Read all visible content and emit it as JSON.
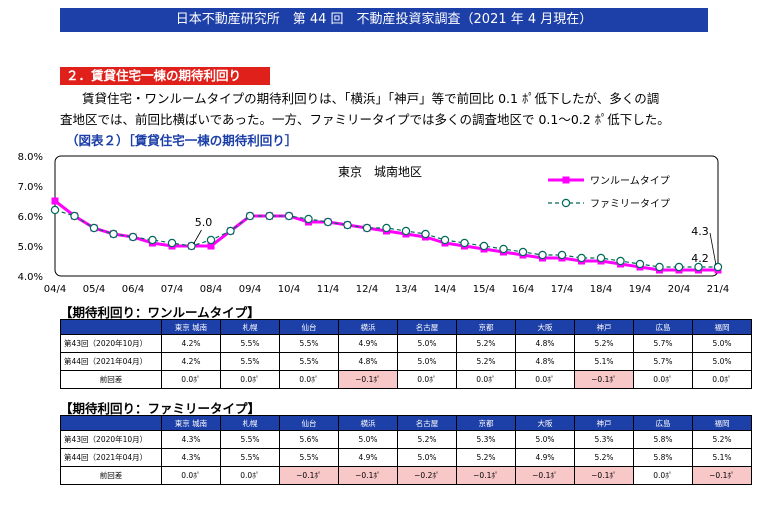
{
  "header": {
    "banner": "日本不動産研究所　第 44 回　不動産投資家調査（2021 年 4 月現在）"
  },
  "section": {
    "title": "２．賃貸住宅一棟の期待利回り",
    "para_line1": "賃貸住宅・ワンルームタイプの期待利回りは、「横浜」「神戸」等で前回比 0.1 ﾎﾟ低下したが、多くの調",
    "para_line2": "査地区では、前回比横ばいであった。一方、ファミリータイプでは多くの調査地区で 0.1〜0.2 ﾎﾟ低下した。",
    "figure_title": "（図表２）［賃貸住宅一棟の期待利回り］"
  },
  "chart_data": {
    "type": "line",
    "title": "東京　城南地区",
    "x": [
      "04/4",
      "04/10",
      "05/4",
      "05/10",
      "06/4",
      "06/10",
      "07/4",
      "07/10",
      "08/4",
      "08/10",
      "09/4",
      "09/10",
      "10/4",
      "10/10",
      "11/4",
      "11/10",
      "12/4",
      "12/10",
      "13/4",
      "13/10",
      "14/4",
      "14/10",
      "15/4",
      "15/10",
      "16/4",
      "16/10",
      "17/4",
      "17/10",
      "18/4",
      "18/10",
      "19/4",
      "19/10",
      "20/4",
      "20/10",
      "21/4"
    ],
    "x_tick_labels": [
      "04/4",
      "05/4",
      "06/4",
      "07/4",
      "08/4",
      "09/4",
      "10/4",
      "11/4",
      "12/4",
      "13/4",
      "14/4",
      "15/4",
      "16/4",
      "17/4",
      "18/4",
      "19/4",
      "20/4",
      "21/4"
    ],
    "ylim": [
      4.0,
      8.0
    ],
    "y_tick_labels": [
      "4.0%",
      "5.0%",
      "6.0%",
      "7.0%",
      "8.0%"
    ],
    "legend_position": "top-right",
    "series": [
      {
        "name": "ワンルームタイプ",
        "color": "#ff00ff",
        "values": [
          6.5,
          6.0,
          5.6,
          5.4,
          5.3,
          5.1,
          5.0,
          5.0,
          5.0,
          5.5,
          6.0,
          6.0,
          6.0,
          5.8,
          5.8,
          5.7,
          5.6,
          5.5,
          5.4,
          5.3,
          5.1,
          5.0,
          4.9,
          4.8,
          4.7,
          4.6,
          4.6,
          4.5,
          4.5,
          4.4,
          4.3,
          4.2,
          4.2,
          4.2,
          4.2
        ]
      },
      {
        "name": "ファミリータイプ",
        "color": "#006a5a",
        "values": [
          6.2,
          6.0,
          5.6,
          5.4,
          5.3,
          5.2,
          5.1,
          5.0,
          5.2,
          5.5,
          6.0,
          6.0,
          6.0,
          5.9,
          5.8,
          5.7,
          5.6,
          5.6,
          5.5,
          5.4,
          5.2,
          5.1,
          5.0,
          4.9,
          4.8,
          4.7,
          4.7,
          4.6,
          4.6,
          4.5,
          4.4,
          4.3,
          4.3,
          4.3,
          4.3
        ]
      }
    ],
    "annotations": [
      {
        "text": "5.0"
      },
      {
        "text": "4.3"
      },
      {
        "text": "4.2"
      }
    ]
  },
  "tables": {
    "oneroom": {
      "title": "【期待利回り：ワンルームタイプ】",
      "columns": [
        "東京 城南",
        "札幌",
        "仙台",
        "横浜",
        "名古屋",
        "京都",
        "大阪",
        "神戸",
        "広島",
        "福岡"
      ],
      "rows": [
        {
          "label": "第43回（2020年10月）",
          "values": [
            "4.2%",
            "5.5%",
            "5.5%",
            "4.9%",
            "5.0%",
            "5.2%",
            "4.8%",
            "5.2%",
            "5.7%",
            "5.0%"
          ]
        },
        {
          "label": "第44回（2021年04月）",
          "values": [
            "4.2%",
            "5.5%",
            "5.5%",
            "4.8%",
            "5.0%",
            "5.2%",
            "4.8%",
            "5.1%",
            "5.7%",
            "5.0%"
          ]
        }
      ],
      "diff": {
        "label": "前回差",
        "values": [
          "0.0ﾎﾟ",
          "0.0ﾎﾟ",
          "0.0ﾎﾟ",
          "−0.1ﾎﾟ",
          "0.0ﾎﾟ",
          "0.0ﾎﾟ",
          "0.0ﾎﾟ",
          "−0.1ﾎﾟ",
          "0.0ﾎﾟ",
          "0.0ﾎﾟ"
        ],
        "negative": [
          false,
          false,
          false,
          true,
          false,
          false,
          false,
          true,
          false,
          false
        ]
      }
    },
    "family": {
      "title": "【期待利回り：ファミリータイプ】",
      "columns": [
        "東京 城南",
        "札幌",
        "仙台",
        "横浜",
        "名古屋",
        "京都",
        "大阪",
        "神戸",
        "広島",
        "福岡"
      ],
      "rows": [
        {
          "label": "第43回（2020年10月）",
          "values": [
            "4.3%",
            "5.5%",
            "5.6%",
            "5.0%",
            "5.2%",
            "5.3%",
            "5.0%",
            "5.3%",
            "5.8%",
            "5.2%"
          ]
        },
        {
          "label": "第44回（2021年04月）",
          "values": [
            "4.3%",
            "5.5%",
            "5.5%",
            "4.9%",
            "5.0%",
            "5.2%",
            "4.9%",
            "5.2%",
            "5.8%",
            "5.1%"
          ]
        }
      ],
      "diff": {
        "label": "前回差",
        "values": [
          "0.0ﾎﾟ",
          "0.0ﾎﾟ",
          "−0.1ﾎﾟ",
          "−0.1ﾎﾟ",
          "−0.2ﾎﾟ",
          "−0.1ﾎﾟ",
          "−0.1ﾎﾟ",
          "−0.1ﾎﾟ",
          "0.0ﾎﾟ",
          "−0.1ﾎﾟ"
        ],
        "negative": [
          false,
          false,
          true,
          true,
          true,
          true,
          true,
          true,
          false,
          true
        ]
      }
    }
  }
}
